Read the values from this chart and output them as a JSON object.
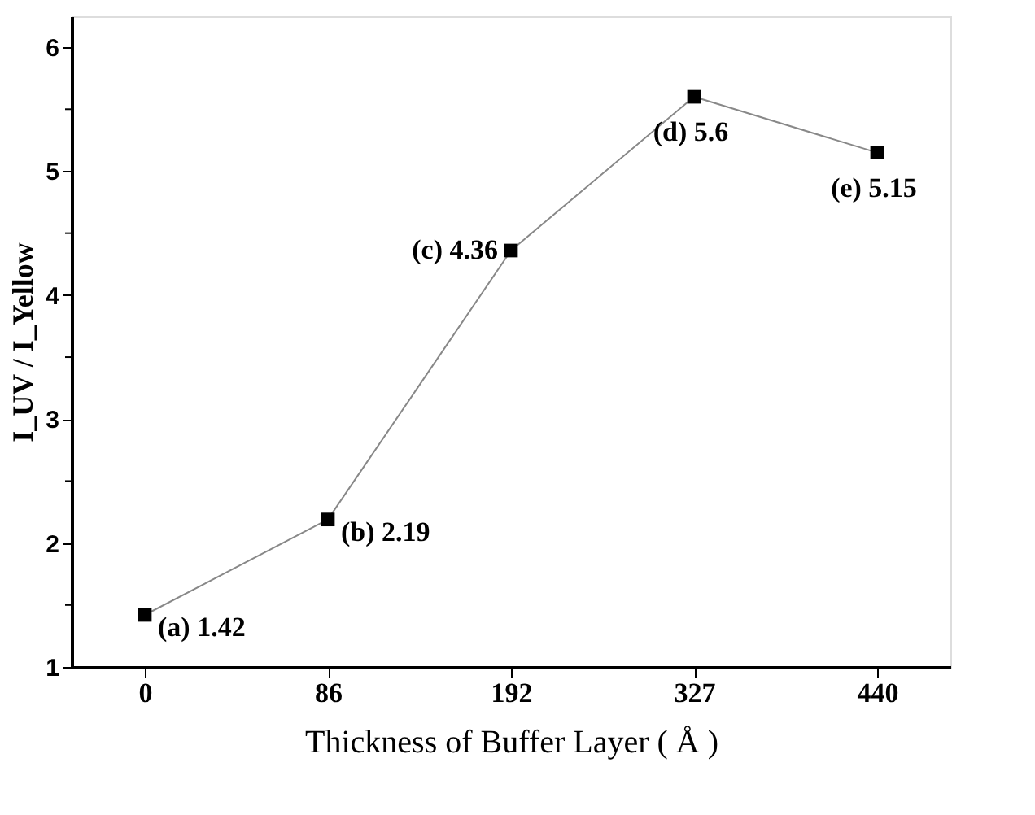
{
  "chart_data": {
    "type": "line",
    "xlabel": "Thickness of Buffer Layer ( Å )",
    "ylabel": "I_UV / I_Yellow",
    "categories": [
      "0",
      "86",
      "192",
      "327",
      "440"
    ],
    "series": [
      {
        "color": "#000000",
        "values": [
          1.42,
          2.19,
          4.36,
          5.6,
          5.15
        ],
        "value_labels": [
          "(a) 1.42",
          "(b) 2.19",
          "(c) 4.36",
          "(d) 5.6",
          "(e) 5.15"
        ]
      }
    ],
    "marker": "square",
    "line_style": "solid",
    "ylim": [
      1,
      6.25
    ],
    "yticks": [
      1,
      {
        "value": 1.5,
        "label": null
      },
      2,
      {
        "value": 2.5,
        "label": null
      },
      3,
      {
        "value": 3.5,
        "label": null
      },
      4,
      {
        "value": 4.5,
        "label": null
      },
      5,
      {
        "value": 5.5,
        "label": null
      },
      6
    ]
  }
}
